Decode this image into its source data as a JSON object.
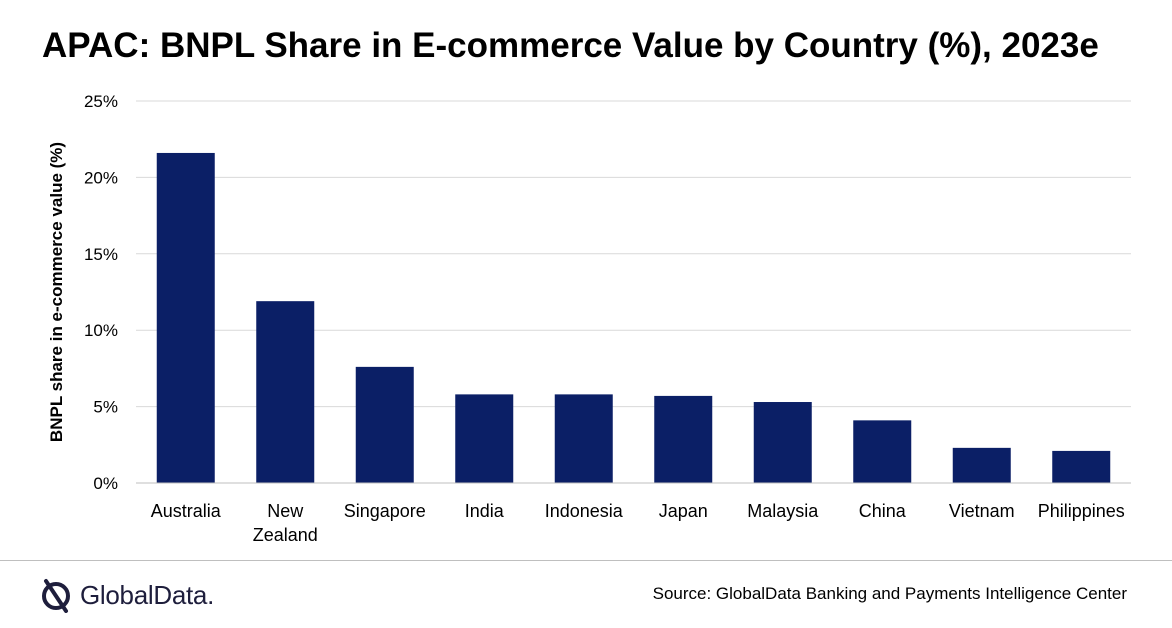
{
  "title": "APAC: BNPL Share in E-commerce Value by Country (%), 2023e",
  "source": "Source: GlobalData Banking and Payments Intelligence Center",
  "logo": {
    "text": "GlobalData.",
    "icon": "globaldata-logo-icon"
  },
  "colors": {
    "bar": "#0b1f66",
    "grid": "#d9d9d9",
    "axis": "#000000"
  },
  "chart_data": {
    "type": "bar",
    "title": "APAC: BNPL Share in E-commerce Value by Country (%), 2023e",
    "xlabel": "",
    "ylabel": "BNPL share in e-commerce value (%)",
    "categories": [
      "Australia",
      "New Zealand",
      "Singapore",
      "India",
      "Indonesia",
      "Japan",
      "Malaysia",
      "China",
      "Vietnam",
      "Philippines"
    ],
    "category_lines": [
      [
        "Australia"
      ],
      [
        "New",
        "Zealand"
      ],
      [
        "Singapore"
      ],
      [
        "India"
      ],
      [
        "Indonesia"
      ],
      [
        "Japan"
      ],
      [
        "Malaysia"
      ],
      [
        "China"
      ],
      [
        "Vietnam"
      ],
      [
        "Philippines"
      ]
    ],
    "values": [
      21.6,
      11.9,
      7.6,
      5.8,
      5.8,
      5.7,
      5.3,
      4.1,
      2.3,
      2.1
    ],
    "ylim": [
      0,
      25
    ],
    "yticks": [
      0,
      5,
      10,
      15,
      20,
      25
    ],
    "ytick_labels": [
      "0%",
      "5%",
      "10%",
      "15%",
      "20%",
      "25%"
    ],
    "grid": true,
    "legend": "none"
  }
}
